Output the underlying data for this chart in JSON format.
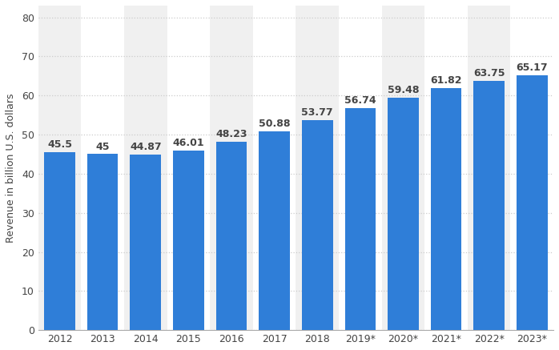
{
  "categories": [
    "2012",
    "2013",
    "2014",
    "2015",
    "2016",
    "2017",
    "2018",
    "2019*",
    "2020*",
    "2021*",
    "2022*",
    "2023*"
  ],
  "values": [
    45.5,
    45.0,
    44.87,
    46.01,
    48.23,
    50.88,
    53.77,
    56.74,
    59.48,
    61.82,
    63.75,
    65.17
  ],
  "bar_color": "#2f7ed8",
  "background_color": "#ffffff",
  "col_bg_even": "#ffffff",
  "col_bg_odd": "#f0f0f0",
  "ylabel": "Revenue in billion U.S. dollars",
  "ylim": [
    0,
    83
  ],
  "yticks": [
    0,
    10,
    20,
    30,
    40,
    50,
    60,
    70,
    80
  ],
  "grid_color": "#cccccc",
  "label_fontsize": 9.0,
  "tick_fontsize": 9.0,
  "ylabel_fontsize": 9.0,
  "label_color": "#444444",
  "value_labels": [
    "45.5",
    "45",
    "44.87",
    "46.01",
    "48.23",
    "50.88",
    "53.77",
    "56.74",
    "59.48",
    "61.82",
    "63.75",
    "65.17"
  ]
}
